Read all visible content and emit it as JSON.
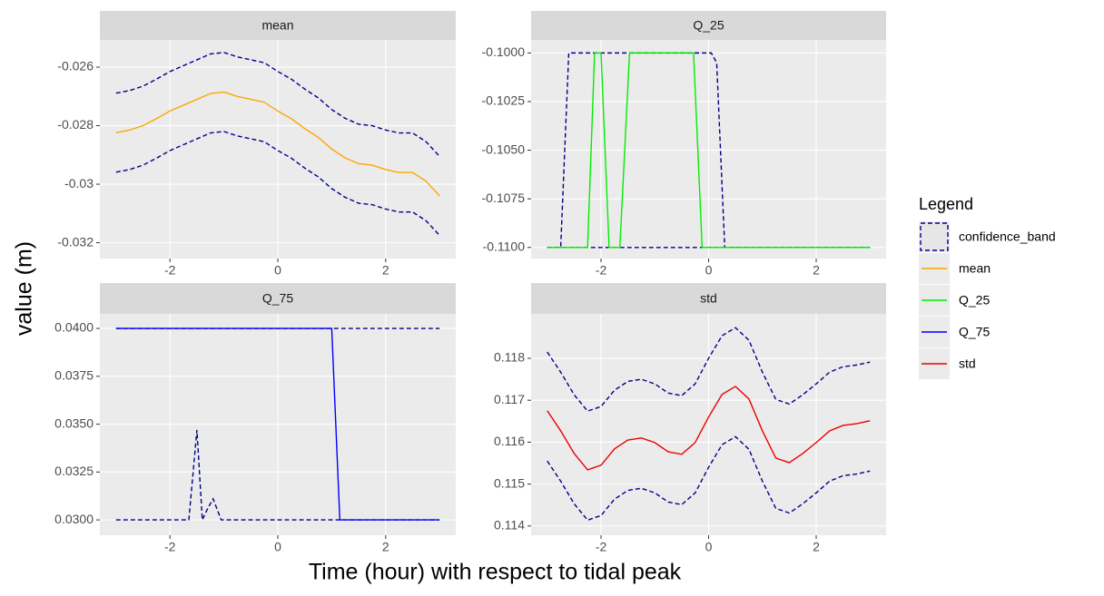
{
  "xlabel": "Time (hour) with respect to tidal peak",
  "ylabel": "value (m)",
  "legend": {
    "title": "Legend",
    "items": [
      {
        "name": "confidence_band",
        "color": "#00008b",
        "dashed": true
      },
      {
        "name": "mean",
        "color": "#ffa500",
        "dashed": false
      },
      {
        "name": "Q_25",
        "color": "#00ee00",
        "dashed": false
      },
      {
        "name": "Q_75",
        "color": "#0000ff",
        "dashed": false
      },
      {
        "name": "std",
        "color": "#ee0000",
        "dashed": false
      }
    ]
  },
  "chart_data": [
    {
      "type": "line",
      "title": "mean",
      "grid": true,
      "xlim": [
        -3.3,
        3.3
      ],
      "ylim": [
        -0.03254,
        -0.02507
      ],
      "xticks": [
        -2,
        0,
        2
      ],
      "yticks": [
        -0.026,
        -0.028,
        -0.03,
        -0.032
      ],
      "series": [
        {
          "color": "#00008b",
          "dashed": true,
          "x": [
            -3,
            -2.75,
            -2.5,
            -2.25,
            -2,
            -1.75,
            -1.5,
            -1.25,
            -1,
            -0.75,
            -0.5,
            -0.25,
            0,
            0.25,
            0.5,
            0.75,
            1,
            1.25,
            1.5,
            1.75,
            2,
            2.25,
            2.5,
            2.75,
            3
          ],
          "values": [
            -0.02689,
            -0.0268,
            -0.02665,
            -0.02641,
            -0.02615,
            -0.02595,
            -0.02575,
            -0.02555,
            -0.0255,
            -0.02565,
            -0.02575,
            -0.02585,
            -0.02615,
            -0.02641,
            -0.02675,
            -0.02705,
            -0.02745,
            -0.02775,
            -0.02795,
            -0.028,
            -0.02815,
            -0.02825,
            -0.02825,
            -0.02855,
            -0.02905
          ]
        },
        {
          "color": "#00008b",
          "dashed": true,
          "x": [
            -3,
            -2.75,
            -2.5,
            -2.25,
            -2,
            -1.75,
            -1.5,
            -1.25,
            -1,
            -0.75,
            -0.5,
            -0.25,
            0,
            0.25,
            0.5,
            0.75,
            1,
            1.25,
            1.5,
            1.75,
            2,
            2.25,
            2.5,
            2.75,
            3
          ],
          "values": [
            -0.02959,
            -0.0295,
            -0.02935,
            -0.02911,
            -0.02885,
            -0.02865,
            -0.02845,
            -0.02825,
            -0.0282,
            -0.02835,
            -0.02845,
            -0.02855,
            -0.02885,
            -0.02911,
            -0.02945,
            -0.02975,
            -0.03015,
            -0.03045,
            -0.03065,
            -0.0307,
            -0.03085,
            -0.03095,
            -0.03095,
            -0.03125,
            -0.03175
          ]
        },
        {
          "color": "#ffa500",
          "dashed": false,
          "x": [
            -3,
            -2.75,
            -2.5,
            -2.25,
            -2,
            -1.75,
            -1.5,
            -1.25,
            -1,
            -0.75,
            -0.5,
            -0.25,
            0,
            0.25,
            0.5,
            0.75,
            1,
            1.25,
            1.5,
            1.75,
            2,
            2.25,
            2.5,
            2.75,
            3
          ],
          "values": [
            -0.02824,
            -0.02815,
            -0.028,
            -0.02776,
            -0.0275,
            -0.0273,
            -0.0271,
            -0.0269,
            -0.02685,
            -0.027,
            -0.0271,
            -0.0272,
            -0.0275,
            -0.02776,
            -0.0281,
            -0.0284,
            -0.0288,
            -0.0291,
            -0.0293,
            -0.02935,
            -0.0295,
            -0.0296,
            -0.0296,
            -0.0299,
            -0.0304
          ]
        }
      ]
    },
    {
      "type": "line",
      "title": "Q_25",
      "grid": true,
      "xlim": [
        -3.3,
        3.3
      ],
      "ylim": [
        -0.11057,
        -0.09933
      ],
      "xticks": [
        -2,
        0,
        2
      ],
      "yticks": [
        {
          "value": -0.1,
          "label": "-0.1000"
        },
        -0.1025,
        {
          "value": -0.105,
          "label": "-0.1050"
        },
        -0.1075,
        {
          "value": -0.11,
          "label": "-0.1100"
        }
      ],
      "series": [
        {
          "color": "#00008b",
          "dashed": true,
          "x": [
            -3,
            -2.75,
            -2.6,
            0.05,
            0.15,
            0.3,
            3
          ],
          "values": [
            -0.11,
            -0.11,
            -0.1,
            -0.1,
            -0.1005,
            -0.11,
            -0.11
          ]
        },
        {
          "color": "#00008b",
          "dashed": true,
          "x": [
            -3,
            3
          ],
          "values": [
            -0.11,
            -0.11
          ]
        },
        {
          "color": "#00ee00",
          "dashed": false,
          "x": [
            -3,
            -2.25,
            -2.12,
            -2.0,
            -1.85,
            -1.65,
            -1.47,
            -0.28,
            -0.12,
            3
          ],
          "values": [
            -0.11,
            -0.11,
            -0.1,
            -0.1,
            -0.11,
            -0.11,
            -0.1,
            -0.1,
            -0.11,
            -0.11
          ]
        }
      ]
    },
    {
      "type": "line",
      "title": "Q_75",
      "grid": true,
      "xlim": [
        -3.3,
        3.3
      ],
      "ylim": [
        0.0292,
        0.04076
      ],
      "xticks": [
        -2,
        0,
        2
      ],
      "yticks": [
        {
          "value": 0.04,
          "label": "0.0400"
        },
        0.0375,
        {
          "value": 0.035,
          "label": "0.0350"
        },
        0.0325,
        {
          "value": 0.03,
          "label": "0.0300"
        }
      ],
      "series": [
        {
          "color": "#00008b",
          "dashed": true,
          "x": [
            -3,
            3
          ],
          "values": [
            0.04,
            0.04
          ]
        },
        {
          "color": "#00008b",
          "dashed": true,
          "x": [
            -3,
            -1.65,
            -1.5,
            -1.4,
            -1.3,
            -1.2,
            -1.05,
            3
          ],
          "values": [
            0.03,
            0.03,
            0.0347,
            0.03,
            0.0306,
            0.0311,
            0.03,
            0.03
          ]
        },
        {
          "color": "#0000ff",
          "dashed": false,
          "x": [
            -3,
            1.0,
            1.15,
            3
          ],
          "values": [
            0.04,
            0.04,
            0.03,
            0.03
          ]
        }
      ]
    },
    {
      "type": "line",
      "title": "std",
      "grid": true,
      "xlim": [
        -3.3,
        3.3
      ],
      "ylim": [
        0.11378,
        0.11906
      ],
      "xticks": [
        -2,
        0,
        2
      ],
      "yticks": [
        0.118,
        0.117,
        0.116,
        0.115,
        0.114
      ],
      "series": [
        {
          "color": "#00008b",
          "dashed": true,
          "x": [
            -3,
            -2.75,
            -2.5,
            -2.25,
            -2,
            -1.75,
            -1.5,
            -1.25,
            -1,
            -0.75,
            -0.5,
            -0.25,
            0,
            0.25,
            0.5,
            0.75,
            1,
            1.25,
            1.5,
            1.75,
            2,
            2.25,
            2.5,
            2.75,
            3
          ],
          "values": [
            0.11815,
            0.11767,
            0.11713,
            0.11674,
            0.11685,
            0.11724,
            0.11745,
            0.1175,
            0.11739,
            0.11717,
            0.11711,
            0.11739,
            0.118,
            0.11854,
            0.11873,
            0.11843,
            0.11767,
            0.11702,
            0.11691,
            0.11713,
            0.11739,
            0.11767,
            0.1178,
            0.11784,
            0.11791
          ]
        },
        {
          "color": "#00008b",
          "dashed": true,
          "x": [
            -3,
            -2.75,
            -2.5,
            -2.25,
            -2,
            -1.75,
            -1.5,
            -1.25,
            -1,
            -0.75,
            -0.5,
            -0.25,
            0,
            0.25,
            0.5,
            0.75,
            1,
            1.25,
            1.5,
            1.75,
            2,
            2.25,
            2.5,
            2.75,
            3
          ],
          "values": [
            0.11555,
            0.11507,
            0.11453,
            0.11414,
            0.11425,
            0.11464,
            0.11485,
            0.1149,
            0.11479,
            0.11457,
            0.11451,
            0.11479,
            0.1154,
            0.11594,
            0.11613,
            0.11583,
            0.11507,
            0.11442,
            0.11431,
            0.11453,
            0.11479,
            0.11507,
            0.1152,
            0.11524,
            0.11531
          ]
        },
        {
          "color": "#ee0000",
          "dashed": false,
          "x": [
            -3,
            -2.75,
            -2.5,
            -2.25,
            -2,
            -1.75,
            -1.5,
            -1.25,
            -1,
            -0.75,
            -0.5,
            -0.25,
            0,
            0.25,
            0.5,
            0.75,
            1,
            1.25,
            1.5,
            1.75,
            2,
            2.25,
            2.5,
            2.75,
            3
          ],
          "values": [
            0.11675,
            0.11627,
            0.11573,
            0.11534,
            0.11545,
            0.11584,
            0.11605,
            0.1161,
            0.11599,
            0.11577,
            0.11571,
            0.11599,
            0.1166,
            0.11714,
            0.11733,
            0.11703,
            0.11627,
            0.11562,
            0.11551,
            0.11573,
            0.11599,
            0.11627,
            0.1164,
            0.11644,
            0.11651
          ]
        }
      ]
    }
  ]
}
